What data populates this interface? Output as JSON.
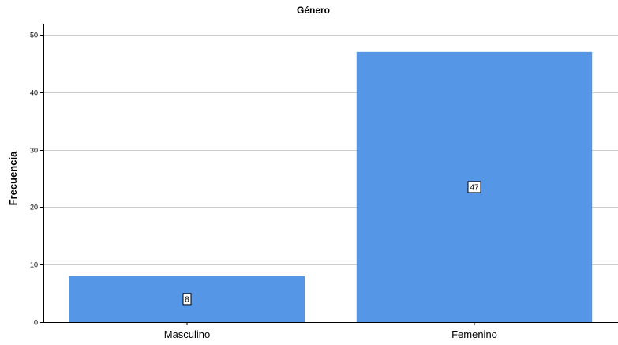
{
  "chart_data": {
    "type": "bar",
    "title": "Género",
    "ylabel": "Frecuencia",
    "xlabel": "",
    "categories": [
      "Masculino",
      "Femenino"
    ],
    "values": [
      8,
      47
    ],
    "data_labels": [
      "8",
      "47"
    ],
    "ylim": [
      0,
      50
    ],
    "yticks": [
      0,
      10,
      20,
      30,
      40,
      50
    ],
    "ytick_labels": [
      "0",
      "10",
      "20",
      "30",
      "40",
      "50"
    ],
    "grid": true,
    "legend": "none",
    "bar_color": "#5596e6"
  }
}
